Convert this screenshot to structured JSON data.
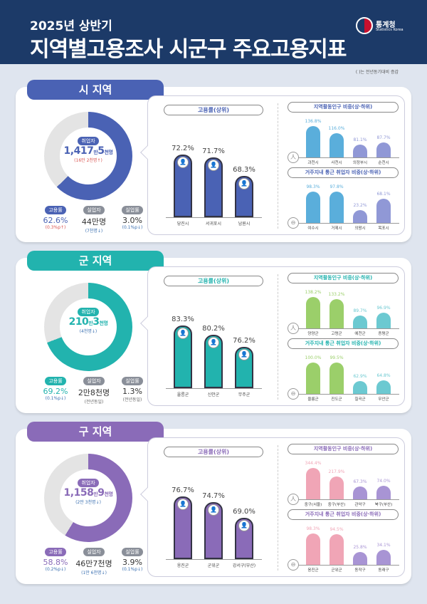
{
  "header": {
    "subtitle": "2025년 상반기",
    "title": "지역별고용조사 시군구 주요고용지표",
    "logo_text": "통계청",
    "logo_en": "Statistics Korea"
  },
  "note": "( )는 전년동기대비 증감",
  "sections": [
    {
      "name": "시 지역",
      "color": "#4a62b4",
      "light": "#5aaedb",
      "low": "#9098d6",
      "employed_label": "취업자",
      "employed_main": "1,417",
      "employed_unit1": "만",
      "employed_sub": "5",
      "employed_unit2": "천명",
      "employed_change": "(16만 2천명↑)",
      "change_color": "#d9534f",
      "donut_fraction": 0.626,
      "metrics": [
        {
          "label": "고용률",
          "value": "62.6%",
          "change": "(0.3%p↑)",
          "up": true
        },
        {
          "label": "실업자",
          "value": "44만명",
          "change": "(7천명↓)",
          "up": false
        },
        {
          "label": "실업률",
          "value": "3.0%",
          "change": "(0.1%p↓)",
          "up": false
        }
      ],
      "emp_title": "고용률(상위)",
      "emp": [
        {
          "name": "당진시",
          "value": 72.2
        },
        {
          "name": "서귀포시",
          "value": 71.7
        },
        {
          "name": "남원시",
          "value": 68.3
        }
      ],
      "act_title": "지역활동인구 비중(상·하위)",
      "act": [
        {
          "name": "과천시",
          "value": 136.8
        },
        {
          "name": "사천시",
          "value": 116.0
        },
        {
          "name": "의정부시",
          "value": 81.1
        },
        {
          "name": "순천시",
          "value": 87.7
        }
      ],
      "com_title": "거주지내 통근 취업자 비중(상·하위)",
      "com": [
        {
          "name": "여수시",
          "value": 98.3
        },
        {
          "name": "거제시",
          "value": 97.8
        },
        {
          "name": "의왕시",
          "value": 23.2
        },
        {
          "name": "목포시",
          "value": 68.1
        }
      ]
    },
    {
      "name": "군 지역",
      "color": "#22b3ae",
      "light": "#9bcf6a",
      "low": "#6cc9d1",
      "employed_label": "취업자",
      "employed_main": "210",
      "employed_unit1": "만",
      "employed_sub": "3",
      "employed_unit2": "천명",
      "employed_change": "(4천명↓)",
      "change_color": "#3a6fb0",
      "donut_fraction": 0.692,
      "metrics": [
        {
          "label": "고용률",
          "value": "69.2%",
          "change": "(0.1%p↓)",
          "up": false
        },
        {
          "label": "실업자",
          "value": "2만8천명",
          "change": "(전년동일)",
          "up": null
        },
        {
          "label": "실업률",
          "value": "1.3%",
          "change": "(전년동일)",
          "up": null
        }
      ],
      "emp_title": "고용률(상위)",
      "emp": [
        {
          "name": "울릉군",
          "value": 83.3
        },
        {
          "name": "신안군",
          "value": 80.2
        },
        {
          "name": "무주군",
          "value": 76.2
        }
      ],
      "act_title": "지역활동인구 비중(상·하위)",
      "act": [
        {
          "name": "양양군",
          "value": 138.2
        },
        {
          "name": "고령군",
          "value": 133.2
        },
        {
          "name": "예천군",
          "value": 89.7
        },
        {
          "name": "증평군",
          "value": 96.9
        }
      ],
      "com_title": "거주지내 통근 취업자 비중(상·하위)",
      "com": [
        {
          "name": "울릉군",
          "value": 100.0
        },
        {
          "name": "진도군",
          "value": 99.5
        },
        {
          "name": "칠곡군",
          "value": 62.9
        },
        {
          "name": "무안군",
          "value": 64.8
        }
      ]
    },
    {
      "name": "구 지역",
      "color": "#8a6bb8",
      "light": "#f0a5b6",
      "low": "#a894d4",
      "employed_label": "취업자",
      "employed_main": "1,158",
      "employed_unit1": "만",
      "employed_sub": "9",
      "employed_unit2": "천명",
      "employed_change": "(2만 3천명↓)",
      "change_color": "#3a6fb0",
      "donut_fraction": 0.588,
      "metrics": [
        {
          "label": "고용률",
          "value": "58.8%",
          "change": "(0.2%p↓)",
          "up": false
        },
        {
          "label": "실업자",
          "value": "46만7천명",
          "change": "(1만 6천명↓)",
          "up": false
        },
        {
          "label": "실업률",
          "value": "3.9%",
          "change": "(0.1%p↓)",
          "up": false
        }
      ],
      "emp_title": "고용률(상위)",
      "emp": [
        {
          "name": "옹진군",
          "value": 76.7
        },
        {
          "name": "군위군",
          "value": 74.7
        },
        {
          "name": "강서구(부산)",
          "value": 69.0
        }
      ],
      "act_title": "지역활동인구 비중(상·하위)",
      "act": [
        {
          "name": "중구(서울)",
          "value": 344.4
        },
        {
          "name": "중구(부산)",
          "value": 217.9
        },
        {
          "name": "관악구",
          "value": 67.3
        },
        {
          "name": "북구(부산)",
          "value": 74.0
        }
      ],
      "com_title": "거주지내 통근 취업자 비중(상·하위)",
      "com": [
        {
          "name": "옹진군",
          "value": 98.3
        },
        {
          "name": "군위군",
          "value": 94.5
        },
        {
          "name": "동작구",
          "value": 25.8
        },
        {
          "name": "동래구",
          "value": 34.1
        }
      ]
    }
  ]
}
